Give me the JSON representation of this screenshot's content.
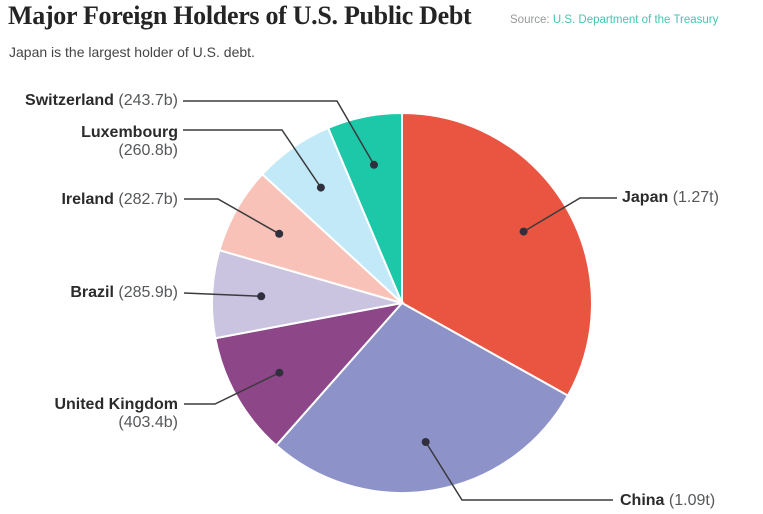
{
  "header": {
    "title": "Major Foreign Holders of U.S. Public Debt",
    "source_label": "Source:",
    "source_name": "U.S. Department of the Treasury",
    "subtitle": "Japan is the largest holder of U.S. debt."
  },
  "chart_data": {
    "type": "pie",
    "title": "Major Foreign Holders of U.S. Public Debt",
    "subtitle": "Japan is the largest holder of U.S. debt.",
    "source": "U.S. Department of the Treasury",
    "direction": "clockwise",
    "start_angle_deg": 0,
    "series": [
      {
        "name": "Japan",
        "value_label": "(1.27t)",
        "value_billions": 1270,
        "color": "#E95540"
      },
      {
        "name": "China",
        "value_label": "(1.09t)",
        "value_billions": 1090,
        "color": "#8D92C9"
      },
      {
        "name": "United Kingdom",
        "value_label": "(403.4b)",
        "value_billions": 403.4,
        "color": "#8D4687"
      },
      {
        "name": "Brazil",
        "value_label": "(285.9b)",
        "value_billions": 285.9,
        "color": "#CAC4E0"
      },
      {
        "name": "Ireland",
        "value_label": "(282.7b)",
        "value_billions": 282.7,
        "color": "#F8C2B8"
      },
      {
        "name": "Luxembourg",
        "value_label": "(260.8b)",
        "value_billions": 260.8,
        "color": "#C2E9F8"
      },
      {
        "name": "Switzerland",
        "value_label": "(243.7b)",
        "value_billions": 243.7,
        "color": "#1DC8A8"
      }
    ],
    "leader_dot_color": "#30303C",
    "leader_line_color": "#3B3B3D"
  }
}
